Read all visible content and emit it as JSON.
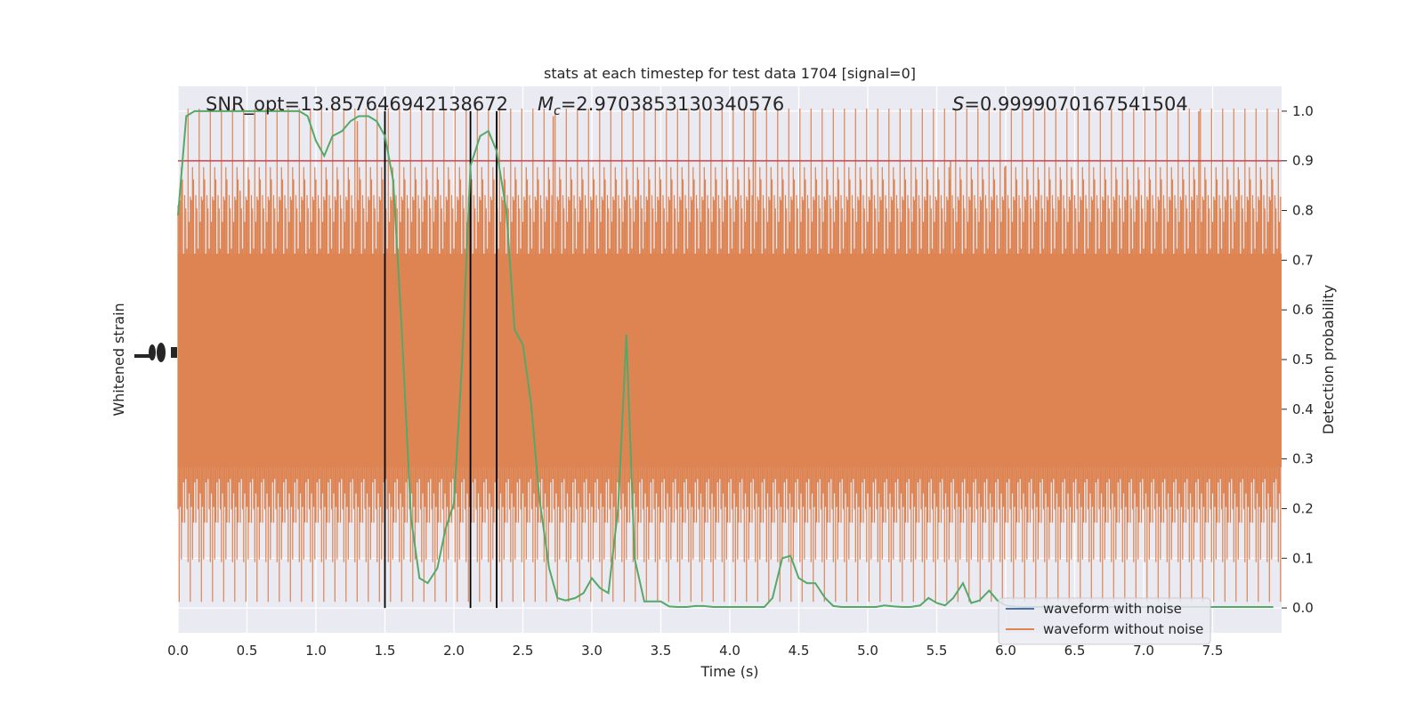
{
  "chart_data": {
    "type": "line",
    "title": "stats at each timestep for test data 1704 [signal=0]",
    "xlabel": "Time (s)",
    "ylabel_left": "Whitened strain",
    "ylabel_right": "Detection probability",
    "xlim": [
      0.0,
      8.0
    ],
    "ylim_right": [
      -0.05,
      1.05
    ],
    "xticks": [
      0.0,
      0.5,
      1.0,
      1.5,
      2.0,
      2.5,
      3.0,
      3.5,
      4.0,
      4.5,
      5.0,
      5.5,
      6.0,
      6.5,
      7.0,
      7.5
    ],
    "xtick_labels": [
      "0.0",
      "0.5",
      "1.0",
      "1.5",
      "2.0",
      "2.5",
      "3.0",
      "3.5",
      "4.0",
      "4.5",
      "5.0",
      "5.5",
      "6.0",
      "6.5",
      "7.0",
      "7.5"
    ],
    "yticks_right": [
      0.0,
      0.1,
      0.2,
      0.3,
      0.4,
      0.5,
      0.6,
      0.7,
      0.8,
      0.9,
      1.0
    ],
    "ytick_labels_right": [
      "0.0",
      "0.1",
      "0.2",
      "0.3",
      "0.4",
      "0.5",
      "0.6",
      "0.7",
      "0.8",
      "0.9",
      "1.0"
    ],
    "grid": true,
    "legend_position": "bottom-right",
    "annotations": {
      "snr": "SNR_opt=13.857646942138672",
      "mc_prefix": "M",
      "mc_sub": "c",
      "mc_value": "=2.9703853130340576",
      "s_prefix": "S",
      "s_value": "=0.9999070167541504"
    },
    "threshold": 0.9,
    "vertical_lines_x": [
      1.5,
      2.12,
      2.31
    ],
    "series": [
      {
        "name": "waveform with noise",
        "color": "#4c72b0",
        "kind": "strain"
      },
      {
        "name": "waveform without noise",
        "color": "#dd8452",
        "kind": "strain"
      },
      {
        "kind": "probability",
        "color": "#55a868",
        "x": [
          0.0,
          0.06,
          0.12,
          0.19,
          0.25,
          0.31,
          0.38,
          0.44,
          0.5,
          0.56,
          0.62,
          0.69,
          0.75,
          0.81,
          0.88,
          0.94,
          1.0,
          1.06,
          1.12,
          1.19,
          1.25,
          1.31,
          1.38,
          1.44,
          1.5,
          1.56,
          1.62,
          1.69,
          1.75,
          1.81,
          1.88,
          1.94,
          2.0,
          2.06,
          2.12,
          2.19,
          2.25,
          2.31,
          2.38,
          2.44,
          2.5,
          2.56,
          2.62,
          2.69,
          2.75,
          2.81,
          2.88,
          2.94,
          3.0,
          3.06,
          3.12,
          3.19,
          3.25,
          3.31,
          3.38,
          3.44,
          3.5,
          3.56,
          3.62,
          3.69,
          3.75,
          3.81,
          3.88,
          3.94,
          4.0,
          4.06,
          4.12,
          4.19,
          4.25,
          4.31,
          4.38,
          4.44,
          4.5,
          4.56,
          4.62,
          4.69,
          4.75,
          4.81,
          4.88,
          4.94,
          5.0,
          5.06,
          5.12,
          5.19,
          5.25,
          5.31,
          5.38,
          5.44,
          5.5,
          5.56,
          5.62,
          5.69,
          5.75,
          5.81,
          5.88,
          5.94,
          6.0,
          6.06,
          6.12,
          6.19,
          6.25,
          6.31,
          6.38,
          6.44,
          6.5,
          6.56,
          6.62,
          6.69,
          6.75,
          6.81,
          6.88,
          6.94,
          7.0,
          7.06,
          7.12,
          7.19,
          7.25,
          7.31,
          7.38,
          7.44,
          7.5,
          7.56,
          7.62,
          7.69,
          7.75,
          7.81,
          7.88,
          7.94
        ],
        "y": [
          0.79,
          0.99,
          1.0,
          1.0,
          1.0,
          1.0,
          1.0,
          1.0,
          1.0,
          1.0,
          1.0,
          1.0,
          1.0,
          1.0,
          1.0,
          0.99,
          0.94,
          0.91,
          0.95,
          0.96,
          0.98,
          0.99,
          0.99,
          0.98,
          0.95,
          0.86,
          0.57,
          0.18,
          0.06,
          0.05,
          0.08,
          0.16,
          0.21,
          0.5,
          0.89,
          0.95,
          0.96,
          0.92,
          0.8,
          0.56,
          0.53,
          0.41,
          0.22,
          0.08,
          0.02,
          0.015,
          0.02,
          0.03,
          0.06,
          0.04,
          0.03,
          0.2,
          0.55,
          0.1,
          0.013,
          0.013,
          0.013,
          0.003,
          0.002,
          0.002,
          0.004,
          0.004,
          0.002,
          0.002,
          0.002,
          0.002,
          0.002,
          0.002,
          0.002,
          0.02,
          0.1,
          0.105,
          0.06,
          0.05,
          0.05,
          0.02,
          0.004,
          0.002,
          0.002,
          0.002,
          0.002,
          0.002,
          0.005,
          0.003,
          0.002,
          0.002,
          0.005,
          0.02,
          0.01,
          0.005,
          0.02,
          0.05,
          0.01,
          0.015,
          0.035,
          0.015,
          0.005,
          0.003,
          0.002,
          0.002,
          0.002,
          0.002,
          0.002,
          0.002,
          0.002,
          0.002,
          0.002,
          0.002,
          0.002,
          0.002,
          0.002,
          0.002,
          0.002,
          0.002,
          0.002,
          0.002,
          0.002,
          0.002,
          0.002,
          0.002,
          0.002,
          0.002,
          0.002,
          0.002,
          0.002,
          0.002,
          0.002,
          0.002
        ]
      }
    ]
  }
}
